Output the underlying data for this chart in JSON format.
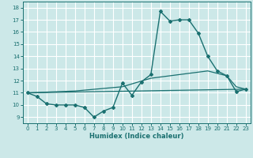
{
  "xlabel": "Humidex (Indice chaleur)",
  "xlim": [
    -0.5,
    23.5
  ],
  "ylim": [
    8.5,
    18.5
  ],
  "yticks": [
    9,
    10,
    11,
    12,
    13,
    14,
    15,
    16,
    17,
    18
  ],
  "xticks": [
    0,
    1,
    2,
    3,
    4,
    5,
    6,
    7,
    8,
    9,
    10,
    11,
    12,
    13,
    14,
    15,
    16,
    17,
    18,
    19,
    20,
    21,
    22,
    23
  ],
  "bg_color": "#cce8e8",
  "line_color": "#1a7070",
  "grid_color": "#ffffff",
  "series_main_x": [
    0,
    1,
    2,
    3,
    4,
    5,
    6,
    7,
    8,
    9,
    10,
    11,
    12,
    13,
    14,
    15,
    16,
    17,
    18,
    19,
    20,
    21,
    22,
    23
  ],
  "series_main_y": [
    11.0,
    10.7,
    10.1,
    10.0,
    10.0,
    10.0,
    9.8,
    9.0,
    9.5,
    9.8,
    11.8,
    10.8,
    11.9,
    12.5,
    17.7,
    16.9,
    17.0,
    17.0,
    15.9,
    14.0,
    12.8,
    12.4,
    11.1,
    11.3
  ],
  "series_line1_x": [
    0,
    23
  ],
  "series_line1_y": [
    11.0,
    11.3
  ],
  "series_line2_x": [
    0,
    5,
    10,
    13,
    16,
    19,
    20,
    21,
    22,
    23
  ],
  "series_line2_y": [
    11.0,
    11.15,
    11.5,
    12.2,
    12.5,
    12.8,
    12.6,
    12.4,
    11.5,
    11.3
  ]
}
